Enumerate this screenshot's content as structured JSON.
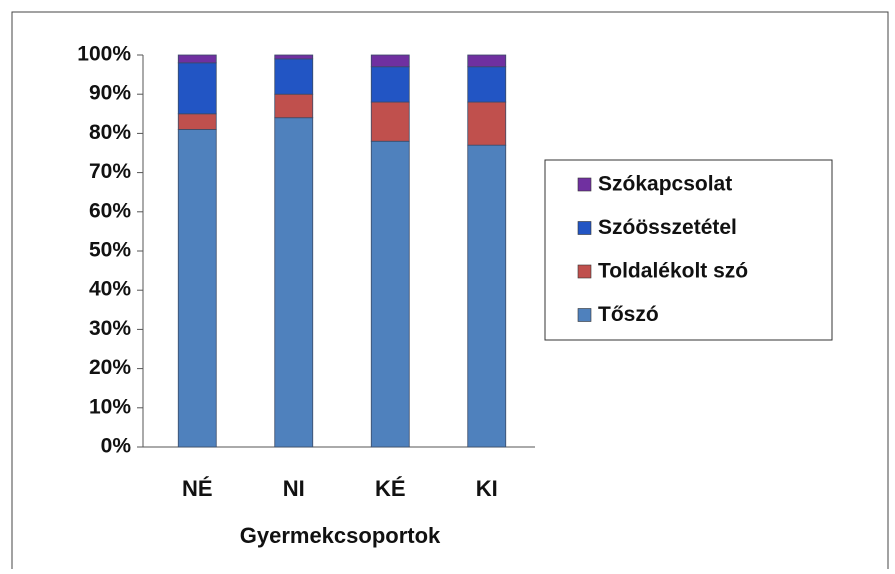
{
  "chart_data": {
    "type": "bar",
    "stacked": true,
    "x_label": "Gyermekcsoportok",
    "categories": [
      "NÉ",
      "NI",
      "KÉ",
      "KI"
    ],
    "series": [
      {
        "name": "Tőszó",
        "color": "#4f81bd",
        "values": [
          81,
          84,
          78,
          77
        ]
      },
      {
        "name": "Toldalékolt szó",
        "color": "#c0504d",
        "values": [
          4,
          6,
          10,
          11
        ]
      },
      {
        "name": "Szóösszetétel",
        "color": "#2255c4",
        "values": [
          13,
          9,
          9,
          9
        ]
      },
      {
        "name": "Szókapcsolat",
        "color": "#7030a0",
        "values": [
          2,
          1,
          3,
          3
        ]
      }
    ],
    "ylim": [
      0,
      100
    ],
    "yticks": [
      {
        "value": 0,
        "label": "0%"
      },
      {
        "value": 10,
        "label": "10%"
      },
      {
        "value": 20,
        "label": "20%"
      },
      {
        "value": 30,
        "label": "30%"
      },
      {
        "value": 40,
        "label": "40%"
      },
      {
        "value": 50,
        "label": "50%"
      },
      {
        "value": 60,
        "label": "60%"
      },
      {
        "value": 70,
        "label": "70%"
      },
      {
        "value": 80,
        "label": "80%"
      },
      {
        "value": 90,
        "label": "90%"
      },
      {
        "value": 100,
        "label": "100%"
      }
    ],
    "legend": "right",
    "grid": false
  }
}
